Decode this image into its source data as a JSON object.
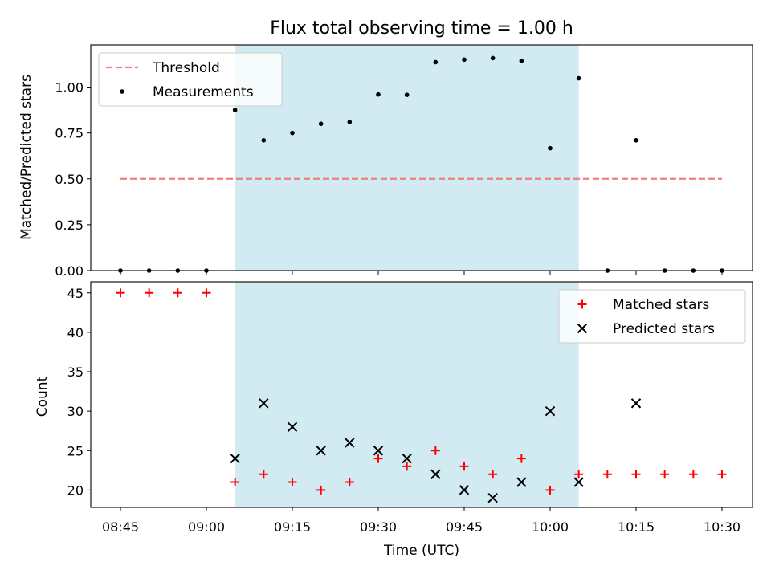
{
  "chart_data": [
    {
      "type": "scatter",
      "title": "Flux total observing time = 1.00 h",
      "xlabel": "",
      "ylabel": "Matched/Predicted stars",
      "ylim": [
        0,
        1.23
      ],
      "yticks": [
        "0.00",
        "0.25",
        "0.50",
        "0.75",
        "1.00"
      ],
      "ytick_values": [
        0,
        0.25,
        0.5,
        0.75,
        1.0
      ],
      "grid": false,
      "legend": "top-left",
      "shaded_region": {
        "x_start": "09:05",
        "x_end": "10:05",
        "color": "#add8e6"
      },
      "threshold": {
        "name": "Threshold",
        "value": 0.5,
        "x_start": "08:45",
        "x_end": "10:30",
        "color": "#f08080"
      },
      "series": [
        {
          "name": "Measurements",
          "marker": "dot",
          "color": "#000000",
          "x": [
            "08:45",
            "08:50",
            "08:55",
            "09:00",
            "09:05",
            "09:10",
            "09:15",
            "09:20",
            "09:25",
            "09:30",
            "09:35",
            "09:40",
            "09:45",
            "09:50",
            "09:55",
            "10:00",
            "10:05",
            "10:10",
            "10:15",
            "10:20",
            "10:25",
            "10:30"
          ],
          "values": [
            0,
            0,
            0,
            0,
            0.875,
            0.71,
            0.75,
            0.8,
            0.81,
            0.96,
            0.958,
            1.136,
            1.15,
            1.158,
            1.143,
            0.667,
            1.048,
            0,
            0.71,
            0,
            0,
            0
          ]
        }
      ]
    },
    {
      "type": "scatter",
      "title": "",
      "xlabel": "Time (UTC)",
      "ylabel": "Count",
      "ylim": [
        17.8,
        46.4
      ],
      "yticks": [
        "20",
        "25",
        "30",
        "35",
        "40",
        "45"
      ],
      "ytick_values": [
        20,
        25,
        30,
        35,
        40,
        45
      ],
      "xticks": [
        "08:45",
        "09:00",
        "09:15",
        "09:30",
        "09:45",
        "10:00",
        "10:15",
        "10:30"
      ],
      "grid": false,
      "legend": "top-right",
      "shaded_region": {
        "x_start": "09:05",
        "x_end": "10:05",
        "color": "#add8e6"
      },
      "series": [
        {
          "name": "Matched stars",
          "marker": "plus",
          "color": "#ff0000",
          "x": [
            "08:45",
            "08:50",
            "08:55",
            "09:00",
            "09:05",
            "09:10",
            "09:15",
            "09:20",
            "09:25",
            "09:30",
            "09:35",
            "09:40",
            "09:45",
            "09:50",
            "09:55",
            "10:00",
            "10:05",
            "10:10",
            "10:15",
            "10:20",
            "10:25",
            "10:30"
          ],
          "values": [
            45,
            45,
            45,
            45,
            21,
            22,
            21,
            20,
            21,
            24,
            23,
            25,
            23,
            22,
            24,
            20,
            22,
            22,
            22,
            22,
            22,
            22
          ]
        },
        {
          "name": "Predicted stars",
          "marker": "x",
          "color": "#000000",
          "x": [
            "09:05",
            "09:10",
            "09:15",
            "09:20",
            "09:25",
            "09:30",
            "09:35",
            "09:40",
            "09:45",
            "09:50",
            "09:55",
            "10:00",
            "10:05",
            "10:15"
          ],
          "values": [
            24,
            31,
            28,
            25,
            26,
            25,
            24,
            22,
            20,
            19,
            21,
            30,
            21,
            31
          ]
        }
      ]
    }
  ]
}
